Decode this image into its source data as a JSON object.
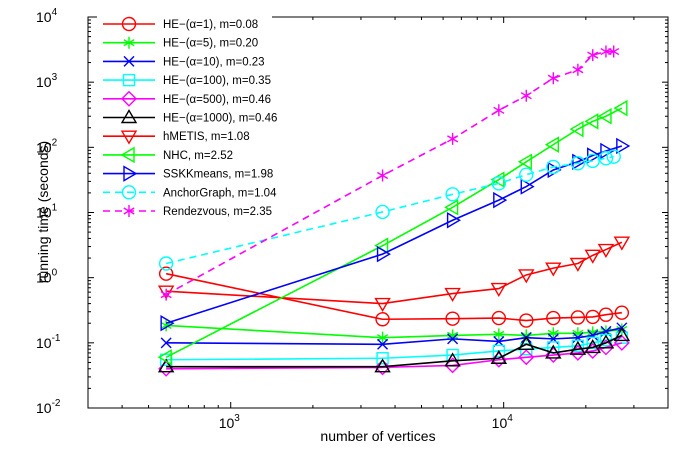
{
  "chart_data": {
    "type": "line",
    "xlabel": "number of vertices",
    "ylabel": "running time (seconds)",
    "xscale": "log",
    "yscale": "log",
    "xlim": [
      300,
      40000
    ],
    "ylim": [
      0.01,
      10000
    ],
    "grid": false,
    "legend_position": "top-left",
    "x_ticks": [
      {
        "value": 1000,
        "base": "10",
        "exp": "3"
      },
      {
        "value": 10000,
        "base": "10",
        "exp": "4"
      }
    ],
    "y_ticks": [
      {
        "value": 0.01,
        "base": "10",
        "exp": "-2"
      },
      {
        "value": 0.1,
        "base": "10",
        "exp": "-1"
      },
      {
        "value": 1,
        "base": "10",
        "exp": "0"
      },
      {
        "value": 10,
        "base": "10",
        "exp": "1"
      },
      {
        "value": 100,
        "base": "10",
        "exp": "2"
      },
      {
        "value": 1000,
        "base": "10",
        "exp": "3"
      },
      {
        "value": 10000,
        "base": "10",
        "exp": "4"
      }
    ],
    "series": [
      {
        "name": "HE−(α=1), m=0.08",
        "color": "#ff0000",
        "marker": "circle",
        "dash": "solid",
        "x": [
          580,
          3600,
          6500,
          9600,
          12100,
          15200,
          18700,
          21200,
          23700,
          27100
        ],
        "y": [
          1.15,
          0.23,
          0.235,
          0.24,
          0.22,
          0.24,
          0.245,
          0.25,
          0.27,
          0.29
        ]
      },
      {
        "name": "HE−(α=5), m=0.20",
        "color": "#00ff00",
        "marker": "asterisk",
        "dash": "solid",
        "x": [
          580,
          3600,
          6500,
          9600,
          12100,
          15200,
          18700,
          21200,
          23700,
          27100
        ],
        "y": [
          0.185,
          0.12,
          0.13,
          0.135,
          0.13,
          0.14,
          0.14,
          0.145,
          0.15,
          0.16
        ]
      },
      {
        "name": "HE−(α=10), m=0.23",
        "color": "#0000ff",
        "marker": "x",
        "dash": "solid",
        "x": [
          580,
          3600,
          6500,
          9600,
          12100,
          15200,
          18700,
          21200,
          23700,
          27100
        ],
        "y": [
          0.1,
          0.095,
          0.115,
          0.105,
          0.12,
          0.115,
          0.12,
          0.13,
          0.15,
          0.17
        ]
      },
      {
        "name": "HE−(α=100), m=0.35",
        "color": "#00ffff",
        "marker": "square",
        "dash": "solid",
        "x": [
          580,
          3600,
          6500,
          9600,
          12100,
          15200,
          18700,
          21200,
          23700,
          27100
        ],
        "y": [
          0.055,
          0.058,
          0.065,
          0.075,
          0.08,
          0.085,
          0.09,
          0.1,
          0.11,
          0.12
        ]
      },
      {
        "name": "HE−(α=500), m=0.46",
        "color": "#ff00ff",
        "marker": "diamond",
        "dash": "solid",
        "x": [
          580,
          3600,
          6500,
          9600,
          12100,
          15200,
          18700,
          21200,
          23700,
          27100
        ],
        "y": [
          0.04,
          0.042,
          0.045,
          0.055,
          0.06,
          0.065,
          0.07,
          0.075,
          0.085,
          0.1
        ]
      },
      {
        "name": "HE−(α=1000), m=0.46",
        "color": "#000000",
        "marker": "triangle-up",
        "dash": "solid",
        "x": [
          580,
          3600,
          6500,
          9600,
          12100,
          15200,
          18700,
          21200,
          23700,
          27100
        ],
        "y": [
          0.043,
          0.043,
          0.053,
          0.058,
          0.095,
          0.07,
          0.08,
          0.085,
          0.1,
          0.13
        ]
      },
      {
        "name": "hMETIS, m=1.08",
        "color": "#ff0000",
        "marker": "triangle-down",
        "dash": "solid",
        "x": [
          580,
          3600,
          6500,
          9600,
          12100,
          15200,
          18700,
          21200,
          23700,
          27100
        ],
        "y": [
          0.62,
          0.4,
          0.57,
          0.68,
          1.1,
          1.4,
          1.65,
          2.2,
          2.7,
          3.5
        ]
      },
      {
        "name": "NHC, m=2.52",
        "color": "#00ff00",
        "marker": "triangle-left",
        "dash": "solid",
        "x": [
          580,
          3600,
          6500,
          9600,
          12100,
          15200,
          18700,
          21200,
          23700,
          27100
        ],
        "y": [
          0.06,
          3.1,
          12,
          32,
          60,
          110,
          190,
          250,
          300,
          400
        ]
      },
      {
        "name": "SSKKmeans, m=1.98",
        "color": "#0000ff",
        "marker": "triangle-right",
        "dash": "solid",
        "x": [
          580,
          3600,
          6500,
          9600,
          12100,
          15200,
          18700,
          21200,
          23700,
          27100
        ],
        "y": [
          0.2,
          2.3,
          7.6,
          15.5,
          25,
          45,
          60,
          75,
          88,
          105
        ]
      },
      {
        "name": "AnchorGraph, m=1.04",
        "color": "#00ffff",
        "marker": "circle",
        "dash": "dashed",
        "x": [
          580,
          3600,
          6500,
          9600,
          12100,
          15200,
          18700,
          21200,
          23700,
          25300
        ],
        "y": [
          1.65,
          10.2,
          19,
          28,
          38,
          50,
          57,
          62,
          68,
          72
        ]
      },
      {
        "name": "Rendezvous, m=2.35",
        "color": "#ff00ff",
        "marker": "asterisk",
        "dash": "dashed",
        "x": [
          580,
          3600,
          6500,
          9600,
          12100,
          15200,
          18700,
          21200,
          23700,
          25300
        ],
        "y": [
          0.55,
          37,
          135,
          370,
          620,
          1150,
          1550,
          2600,
          2950,
          2950
        ]
      }
    ]
  }
}
